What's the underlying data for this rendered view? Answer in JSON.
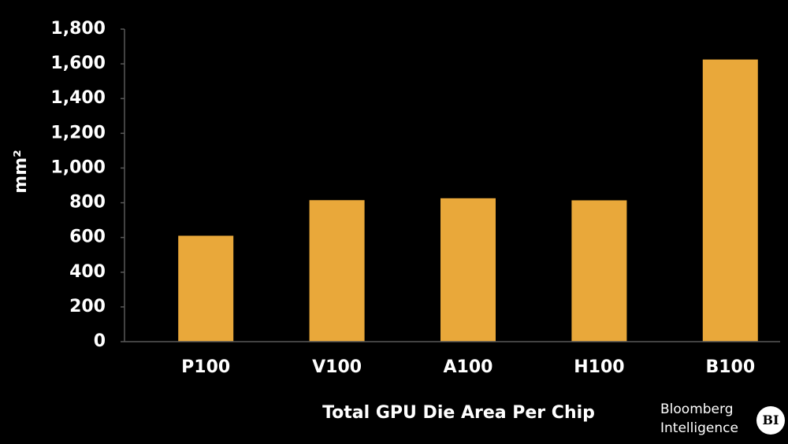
{
  "chart_data": {
    "type": "bar",
    "categories": [
      "P100",
      "V100",
      "A100",
      "H100",
      "B100"
    ],
    "values": [
      610,
      815,
      826,
      814,
      1625
    ],
    "title": "",
    "xlabel": "Total GPU Die Area Per Chip",
    "ylabel": "mm²",
    "ylim": [
      0,
      1800
    ],
    "yticks": [
      0,
      200,
      400,
      600,
      800,
      1000,
      1200,
      1400,
      1600,
      1800
    ],
    "ytick_labels": [
      "0",
      "200",
      "400",
      "600",
      "800",
      "1,000",
      "1,200",
      "1,400",
      "1,600",
      "1,800"
    ],
    "grid": false,
    "legend": "none",
    "bar_color": "#E9A83A",
    "background_color": "#000000",
    "axis_color": "#595959",
    "text_color": "#FFFFFF"
  },
  "branding": {
    "line1": "Bloomberg",
    "line2": "Intelligence",
    "badge": "BI"
  }
}
